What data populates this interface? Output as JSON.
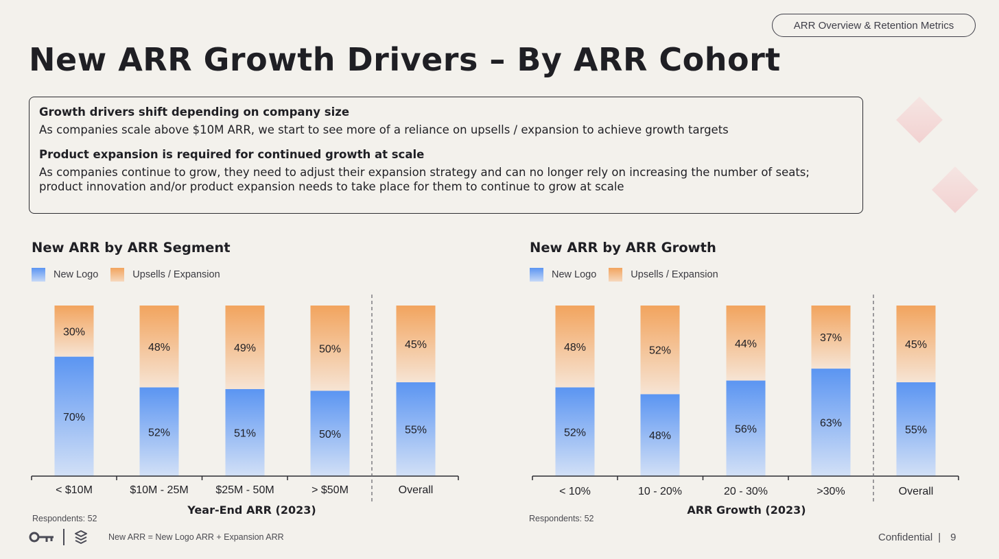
{
  "header": {
    "section_label": "ARR Overview & Retention Metrics",
    "title": "New ARR Growth Drivers – By ARR Cohort"
  },
  "insights": [
    {
      "heading": "Growth drivers shift depending on company size",
      "body": "As companies scale above $10M ARR, we start to see more of a reliance on upsells / expansion to achieve growth targets"
    },
    {
      "heading": "Product expansion is required for continued growth at scale",
      "body": "As companies continue to grow, they need to adjust their expansion strategy and can no longer rely on increasing the number of seats; product innovation and/or product expansion needs to take place for them to continue to grow at scale"
    }
  ],
  "colors": {
    "new_logo": "#5b95f2",
    "upsells": "#f2a45e",
    "text": "#1f1f24"
  },
  "chart_data": [
    {
      "type": "bar",
      "stacked": true,
      "title": "New ARR by ARR Segment",
      "xlabel": "Year-End ARR (2023)",
      "ylabel": "",
      "categories": [
        "< $10M",
        "$10M - 25M",
        "$25M - 50M",
        "> $50M",
        "Overall"
      ],
      "series": [
        {
          "name": "New Logo",
          "values": [
            70,
            52,
            51,
            50,
            55
          ],
          "labels": [
            "70%",
            "52%",
            "51%",
            "50%",
            "55%"
          ]
        },
        {
          "name": "Upsells / Expansion",
          "values": [
            30,
            48,
            49,
            50,
            45
          ],
          "labels": [
            "30%",
            "48%",
            "49%",
            "50%",
            "45%"
          ]
        }
      ],
      "ylim": [
        0,
        100
      ],
      "grid": false,
      "legend": "top-left",
      "separator_before_index": 4,
      "respondents": "Respondents: 52"
    },
    {
      "type": "bar",
      "stacked": true,
      "title": "New ARR by ARR Growth",
      "xlabel": "ARR Growth (2023)",
      "ylabel": "",
      "categories": [
        "< 10%",
        "10 - 20%",
        "20 - 30%",
        ">30%",
        "Overall"
      ],
      "series": [
        {
          "name": "New Logo",
          "values": [
            52,
            48,
            56,
            63,
            55
          ],
          "labels": [
            "52%",
            "48%",
            "56%",
            "63%",
            "55%"
          ]
        },
        {
          "name": "Upsells / Expansion",
          "values": [
            48,
            52,
            44,
            37,
            45
          ],
          "labels": [
            "48%",
            "52%",
            "44%",
            "37%",
            "45%"
          ]
        }
      ],
      "ylim": [
        0,
        100
      ],
      "grid": false,
      "legend": "top-left",
      "separator_before_index": 4,
      "respondents": "Respondents: 52"
    }
  ],
  "footer": {
    "formula": "New ARR = New Logo ARR + Expansion ARR",
    "confidential": "Confidential",
    "page_number": "9"
  }
}
